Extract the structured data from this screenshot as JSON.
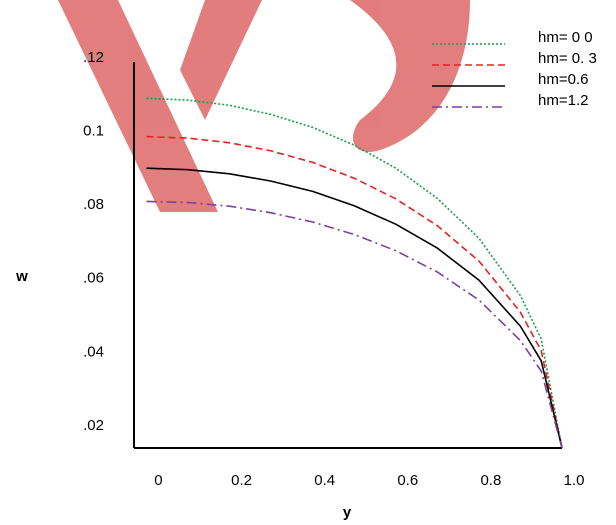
{
  "chart_data": {
    "type": "line",
    "x_label": "y",
    "y_label": "w",
    "x": [
      0,
      0.1,
      0.2,
      0.3,
      0.4,
      0.5,
      0.6,
      0.7,
      0.8,
      0.9,
      0.95,
      1.0
    ],
    "series": [
      {
        "name": "hm= 0 0",
        "color": "#1a9e4a",
        "style": "dotted",
        "values": [
          0.109,
          0.1085,
          0.1071,
          0.1046,
          0.1011,
          0.0963,
          0.09,
          0.0818,
          0.071,
          0.0554,
          0.0436,
          0.014
        ]
      },
      {
        "name": "hm= 0. 3",
        "color": "#e8201e",
        "style": "dashed",
        "values": [
          0.0986,
          0.0982,
          0.0969,
          0.0947,
          0.0916,
          0.0873,
          0.0817,
          0.0744,
          0.0648,
          0.0509,
          0.0404,
          0.014
        ]
      },
      {
        "name": "hm=0.6",
        "color": "#000000",
        "style": "solid",
        "values": [
          0.09,
          0.0896,
          0.0885,
          0.0865,
          0.0837,
          0.0798,
          0.0748,
          0.0683,
          0.0596,
          0.0471,
          0.0377,
          0.014
        ]
      },
      {
        "name": "hm=1.2",
        "color": "#7b3fa0",
        "style": "dashdot",
        "values": [
          0.081,
          0.0807,
          0.0797,
          0.0779,
          0.0754,
          0.072,
          0.0676,
          0.0618,
          0.0542,
          0.0432,
          0.0349,
          0.014
        ]
      }
    ],
    "xlim": [
      -0.03,
      1.0
    ],
    "xticks": [
      0,
      0.2,
      0.4,
      0.6,
      0.8,
      {
        "value": 1,
        "label": "1.0"
      }
    ],
    "ylim": [
      0.014,
      0.13
    ],
    "yticks": [
      {
        "value": 0.02,
        "label": ".02"
      },
      {
        "value": 0.04,
        "label": ".04"
      },
      {
        "value": 0.06,
        "label": ".06"
      },
      {
        "value": 0.08,
        "label": ".08"
      },
      0.1,
      {
        "value": 0.12,
        "label": ".12"
      }
    ],
    "legend": "top-right"
  }
}
